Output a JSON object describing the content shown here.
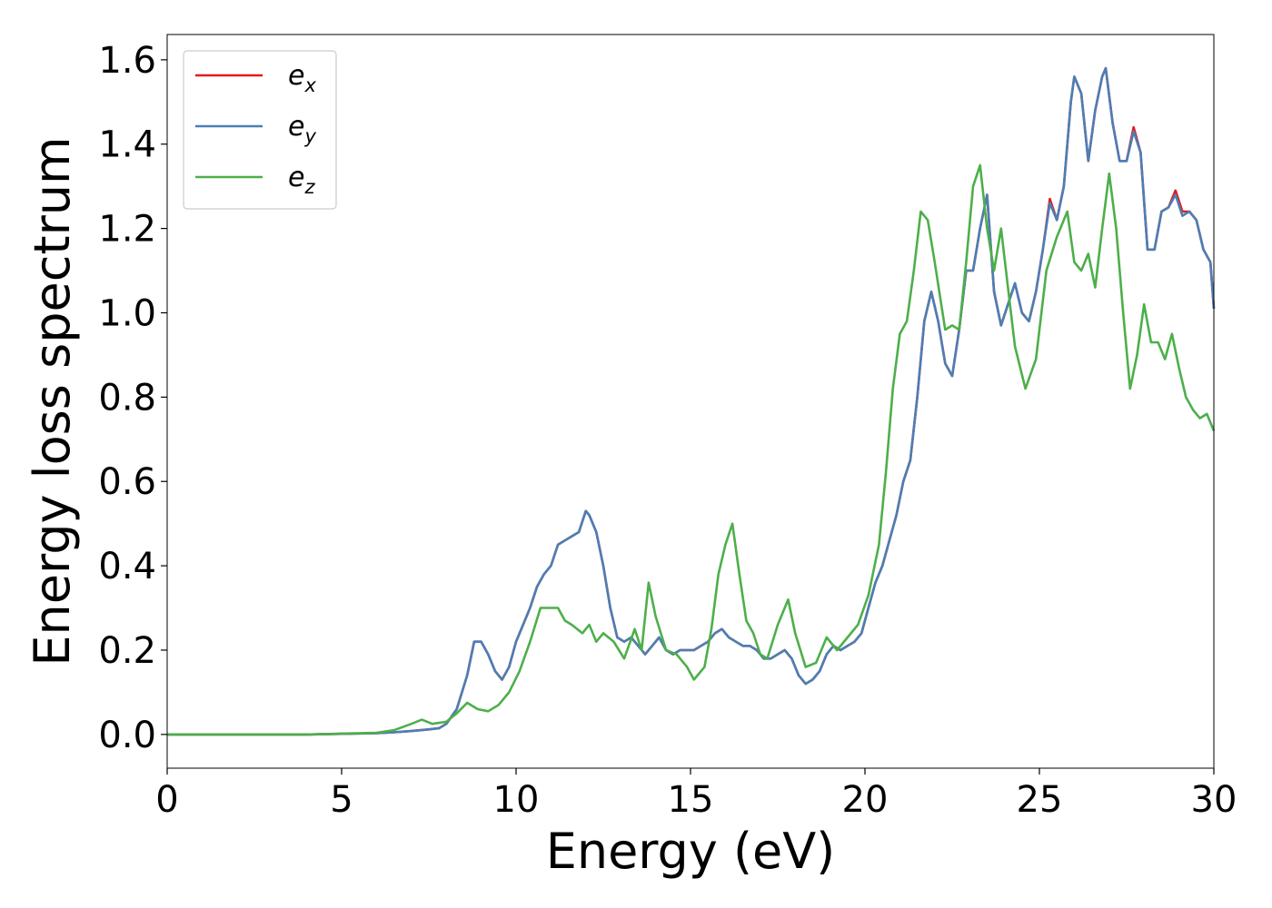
{
  "chart_data": {
    "type": "line",
    "xlabel": "Energy (eV)",
    "ylabel": "Energy loss spectrum",
    "xlim": [
      0,
      30
    ],
    "ylim": [
      -0.08,
      1.66
    ],
    "xticks": [
      0,
      5,
      10,
      15,
      20,
      25,
      30
    ],
    "xtick_labels": [
      "0",
      "5",
      "10",
      "15",
      "20",
      "25",
      "30"
    ],
    "yticks": [
      0.0,
      0.2,
      0.4,
      0.6,
      0.8,
      1.0,
      1.2,
      1.4,
      1.6
    ],
    "ytick_labels": [
      "0.0",
      "0.2",
      "0.4",
      "0.6",
      "0.8",
      "1.0",
      "1.2",
      "1.4",
      "1.6"
    ],
    "grid": false,
    "legend_position": "top-left",
    "series": [
      {
        "name": "e_x",
        "legend_base": "e",
        "legend_sub": "x",
        "color": "#e41a1c",
        "x": [
          0,
          2,
          4,
          6,
          6.5,
          7,
          7.5,
          7.8,
          8,
          8.3,
          8.6,
          8.8,
          9.0,
          9.2,
          9.4,
          9.6,
          9.8,
          10.0,
          10.2,
          10.4,
          10.6,
          10.8,
          11.0,
          11.2,
          11.4,
          11.6,
          11.8,
          12.0,
          12.1,
          12.3,
          12.5,
          12.7,
          12.9,
          13.1,
          13.3,
          13.5,
          13.7,
          13.9,
          14.1,
          14.3,
          14.5,
          14.7,
          14.9,
          15.1,
          15.3,
          15.5,
          15.7,
          15.9,
          16.1,
          16.3,
          16.5,
          16.7,
          16.9,
          17.1,
          17.3,
          17.5,
          17.7,
          17.9,
          18.1,
          18.3,
          18.5,
          18.7,
          18.9,
          19.1,
          19.3,
          19.5,
          19.7,
          19.9,
          20.1,
          20.3,
          20.5,
          20.7,
          20.9,
          21.1,
          21.3,
          21.5,
          21.7,
          21.9,
          22.1,
          22.3,
          22.5,
          22.7,
          22.9,
          23.1,
          23.3,
          23.5,
          23.7,
          23.9,
          24.1,
          24.3,
          24.5,
          24.7,
          24.9,
          25.1,
          25.3,
          25.5,
          25.7,
          25.9,
          26.0,
          26.2,
          26.4,
          26.6,
          26.8,
          26.9,
          27.1,
          27.3,
          27.5,
          27.7,
          27.9,
          28.1,
          28.3,
          28.5,
          28.7,
          28.9,
          29.1,
          29.3,
          29.5,
          29.7,
          29.9,
          30
        ],
        "y": [
          0.0,
          0.0,
          0.0,
          0.003,
          0.005,
          0.008,
          0.012,
          0.015,
          0.025,
          0.06,
          0.14,
          0.22,
          0.22,
          0.19,
          0.15,
          0.13,
          0.16,
          0.22,
          0.26,
          0.3,
          0.35,
          0.38,
          0.4,
          0.45,
          0.46,
          0.47,
          0.48,
          0.53,
          0.52,
          0.48,
          0.4,
          0.3,
          0.23,
          0.22,
          0.23,
          0.21,
          0.19,
          0.21,
          0.23,
          0.2,
          0.19,
          0.2,
          0.2,
          0.2,
          0.21,
          0.22,
          0.24,
          0.25,
          0.23,
          0.22,
          0.21,
          0.21,
          0.2,
          0.18,
          0.18,
          0.19,
          0.2,
          0.18,
          0.14,
          0.12,
          0.13,
          0.15,
          0.19,
          0.21,
          0.2,
          0.21,
          0.22,
          0.24,
          0.3,
          0.36,
          0.4,
          0.46,
          0.52,
          0.6,
          0.65,
          0.8,
          0.98,
          1.05,
          0.98,
          0.88,
          0.85,
          0.96,
          1.1,
          1.1,
          1.2,
          1.28,
          1.05,
          0.97,
          1.02,
          1.07,
          1.0,
          0.98,
          1.05,
          1.15,
          1.27,
          1.22,
          1.3,
          1.5,
          1.56,
          1.52,
          1.36,
          1.48,
          1.56,
          1.58,
          1.45,
          1.36,
          1.36,
          1.44,
          1.38,
          1.15,
          1.15,
          1.24,
          1.25,
          1.29,
          1.24,
          1.24,
          1.22,
          1.15,
          1.12,
          1.01
        ]
      },
      {
        "name": "e_y",
        "legend_base": "e",
        "legend_sub": "y",
        "color": "#4a7fb5",
        "x": [
          0,
          2,
          4,
          6,
          6.5,
          7,
          7.5,
          7.8,
          8,
          8.3,
          8.6,
          8.8,
          9.0,
          9.2,
          9.4,
          9.6,
          9.8,
          10.0,
          10.2,
          10.4,
          10.6,
          10.8,
          11.0,
          11.2,
          11.4,
          11.6,
          11.8,
          12.0,
          12.1,
          12.3,
          12.5,
          12.7,
          12.9,
          13.1,
          13.3,
          13.5,
          13.7,
          13.9,
          14.1,
          14.3,
          14.5,
          14.7,
          14.9,
          15.1,
          15.3,
          15.5,
          15.7,
          15.9,
          16.1,
          16.3,
          16.5,
          16.7,
          16.9,
          17.1,
          17.3,
          17.5,
          17.7,
          17.9,
          18.1,
          18.3,
          18.5,
          18.7,
          18.9,
          19.1,
          19.3,
          19.5,
          19.7,
          19.9,
          20.1,
          20.3,
          20.5,
          20.7,
          20.9,
          21.1,
          21.3,
          21.5,
          21.7,
          21.9,
          22.1,
          22.3,
          22.5,
          22.7,
          22.9,
          23.1,
          23.3,
          23.5,
          23.7,
          23.9,
          24.1,
          24.3,
          24.5,
          24.7,
          24.9,
          25.1,
          25.3,
          25.5,
          25.7,
          25.9,
          26.0,
          26.2,
          26.4,
          26.6,
          26.8,
          26.9,
          27.1,
          27.3,
          27.5,
          27.7,
          27.9,
          28.1,
          28.3,
          28.5,
          28.7,
          28.9,
          29.1,
          29.3,
          29.5,
          29.7,
          29.9,
          30
        ],
        "y": [
          0.0,
          0.0,
          0.0,
          0.003,
          0.005,
          0.008,
          0.012,
          0.015,
          0.025,
          0.06,
          0.14,
          0.22,
          0.22,
          0.19,
          0.15,
          0.13,
          0.16,
          0.22,
          0.26,
          0.3,
          0.35,
          0.38,
          0.4,
          0.45,
          0.46,
          0.47,
          0.48,
          0.53,
          0.52,
          0.48,
          0.4,
          0.3,
          0.23,
          0.22,
          0.23,
          0.21,
          0.19,
          0.21,
          0.23,
          0.2,
          0.19,
          0.2,
          0.2,
          0.2,
          0.21,
          0.22,
          0.24,
          0.25,
          0.23,
          0.22,
          0.21,
          0.21,
          0.2,
          0.18,
          0.18,
          0.19,
          0.2,
          0.18,
          0.14,
          0.12,
          0.13,
          0.15,
          0.19,
          0.21,
          0.2,
          0.21,
          0.22,
          0.24,
          0.3,
          0.36,
          0.4,
          0.46,
          0.52,
          0.6,
          0.65,
          0.8,
          0.98,
          1.05,
          0.98,
          0.88,
          0.85,
          0.96,
          1.1,
          1.1,
          1.2,
          1.28,
          1.05,
          0.97,
          1.02,
          1.07,
          1.0,
          0.98,
          1.05,
          1.15,
          1.26,
          1.22,
          1.3,
          1.5,
          1.56,
          1.52,
          1.36,
          1.48,
          1.56,
          1.58,
          1.45,
          1.36,
          1.36,
          1.43,
          1.38,
          1.15,
          1.15,
          1.24,
          1.25,
          1.28,
          1.23,
          1.24,
          1.22,
          1.15,
          1.12,
          1.01
        ]
      },
      {
        "name": "e_z",
        "legend_base": "e",
        "legend_sub": "z",
        "color": "#4daf4a",
        "x": [
          0,
          2,
          4,
          6,
          6.5,
          7,
          7.3,
          7.6,
          8.0,
          8.3,
          8.6,
          8.9,
          9.2,
          9.5,
          9.8,
          10.1,
          10.4,
          10.7,
          11.0,
          11.2,
          11.4,
          11.6,
          11.9,
          12.1,
          12.3,
          12.5,
          12.8,
          13.1,
          13.4,
          13.6,
          13.8,
          14.0,
          14.3,
          14.6,
          14.9,
          15.1,
          15.4,
          15.6,
          15.8,
          16.0,
          16.2,
          16.4,
          16.6,
          16.8,
          17.0,
          17.2,
          17.5,
          17.8,
          18.0,
          18.3,
          18.6,
          18.9,
          19.2,
          19.5,
          19.8,
          20.1,
          20.4,
          20.6,
          20.8,
          21.0,
          21.2,
          21.4,
          21.6,
          21.8,
          22.0,
          22.3,
          22.5,
          22.7,
          22.9,
          23.1,
          23.3,
          23.5,
          23.7,
          23.9,
          24.1,
          24.3,
          24.6,
          24.9,
          25.2,
          25.5,
          25.8,
          26.0,
          26.2,
          26.4,
          26.6,
          26.8,
          27.0,
          27.2,
          27.4,
          27.6,
          27.8,
          28.0,
          28.2,
          28.4,
          28.6,
          28.8,
          29.0,
          29.2,
          29.4,
          29.6,
          29.8,
          30
        ],
        "y": [
          0.0,
          0.0,
          0.0,
          0.004,
          0.01,
          0.025,
          0.035,
          0.025,
          0.03,
          0.05,
          0.075,
          0.06,
          0.055,
          0.07,
          0.1,
          0.15,
          0.22,
          0.3,
          0.3,
          0.3,
          0.27,
          0.26,
          0.24,
          0.26,
          0.22,
          0.24,
          0.22,
          0.18,
          0.25,
          0.2,
          0.36,
          0.28,
          0.2,
          0.19,
          0.16,
          0.13,
          0.16,
          0.25,
          0.38,
          0.45,
          0.5,
          0.38,
          0.27,
          0.24,
          0.19,
          0.18,
          0.26,
          0.32,
          0.24,
          0.16,
          0.17,
          0.23,
          0.2,
          0.23,
          0.26,
          0.33,
          0.45,
          0.62,
          0.82,
          0.95,
          0.98,
          1.1,
          1.24,
          1.22,
          1.12,
          0.96,
          0.97,
          0.96,
          1.12,
          1.3,
          1.35,
          1.2,
          1.1,
          1.2,
          1.06,
          0.92,
          0.82,
          0.89,
          1.1,
          1.18,
          1.24,
          1.12,
          1.1,
          1.14,
          1.06,
          1.2,
          1.33,
          1.2,
          1.0,
          0.82,
          0.9,
          1.02,
          0.93,
          0.93,
          0.89,
          0.95,
          0.87,
          0.8,
          0.77,
          0.75,
          0.76,
          0.72
        ]
      }
    ]
  }
}
